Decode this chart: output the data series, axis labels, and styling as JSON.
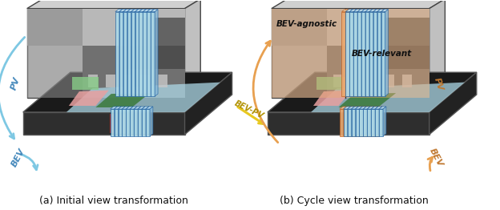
{
  "title_a": "(a) Initial view transformation",
  "title_b": "(b) Cycle view transformation",
  "bg_color": "#ffffff",
  "arrow_blue": "#7ec8e3",
  "arrow_orange": "#e8a050",
  "arrow_yellow": "#e8c820",
  "pv_label": "PV",
  "bev_label": "BEV",
  "bevpv_label": "BEV-PV",
  "bev_agnostic_label": "BEV-agnostic",
  "bev_relevant_label": "BEV-relevant",
  "col_blue": "#add8e6",
  "col_blue_edge": "#2060a0",
  "col_orange": "#e8a870",
  "col_orange_edge": "#c06020",
  "bev_bg": "#1a1a1a",
  "label_fontsize": 8,
  "caption_fontsize": 9
}
